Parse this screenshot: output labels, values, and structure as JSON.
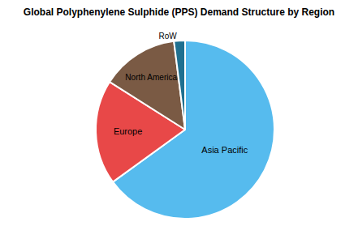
{
  "chart_data": {
    "type": "pie",
    "title": "Global Polyphenylene Sulphide (PPS) Demand Structure by Region",
    "categories": [
      "Asia Pacific",
      "Europe",
      "North America",
      "RoW"
    ],
    "values": [
      65,
      19,
      14,
      2
    ],
    "colors": [
      "#56bbee",
      "#e84848",
      "#7a5a44",
      "#1f7090"
    ]
  }
}
